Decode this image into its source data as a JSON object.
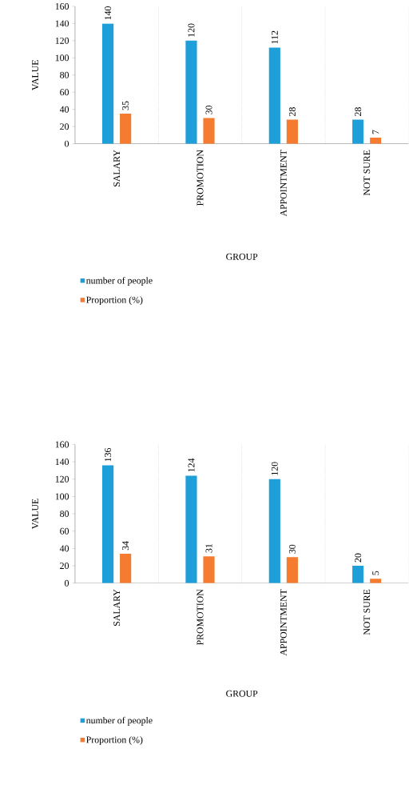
{
  "chart_data": [
    {
      "type": "bar",
      "xlabel": "GROUP",
      "ylabel": "VALUE",
      "categories": [
        "SALARY",
        "PROMOTION",
        "APPOINTMENT",
        "NOT SURE"
      ],
      "series": [
        {
          "name": "number of people",
          "color": "#1f9fd9",
          "values": [
            140,
            120,
            112,
            28
          ]
        },
        {
          "name": "Proportion (%)",
          "color": "#f47b2f",
          "values": [
            35,
            30,
            28,
            7
          ]
        }
      ],
      "ylim": [
        0,
        160
      ],
      "yticks": [
        0,
        20,
        40,
        60,
        80,
        100,
        120,
        140,
        160
      ],
      "grid": "x",
      "legend": "bottom",
      "data_labels": true
    },
    {
      "type": "bar",
      "xlabel": "GROUP",
      "ylabel": "VALUE",
      "categories": [
        "SALARY",
        "PROMOTION",
        "APPOINTMENT",
        "NOT SURE"
      ],
      "series": [
        {
          "name": "number of people",
          "color": "#1f9fd9",
          "values": [
            136,
            124,
            120,
            20
          ]
        },
        {
          "name": "Proportion (%)",
          "color": "#f47b2f",
          "values": [
            34,
            31,
            30,
            5
          ]
        }
      ],
      "ylim": [
        0,
        160
      ],
      "yticks": [
        0,
        20,
        40,
        60,
        80,
        100,
        120,
        140,
        160
      ],
      "grid": "x",
      "legend": "bottom",
      "data_labels": true
    }
  ]
}
